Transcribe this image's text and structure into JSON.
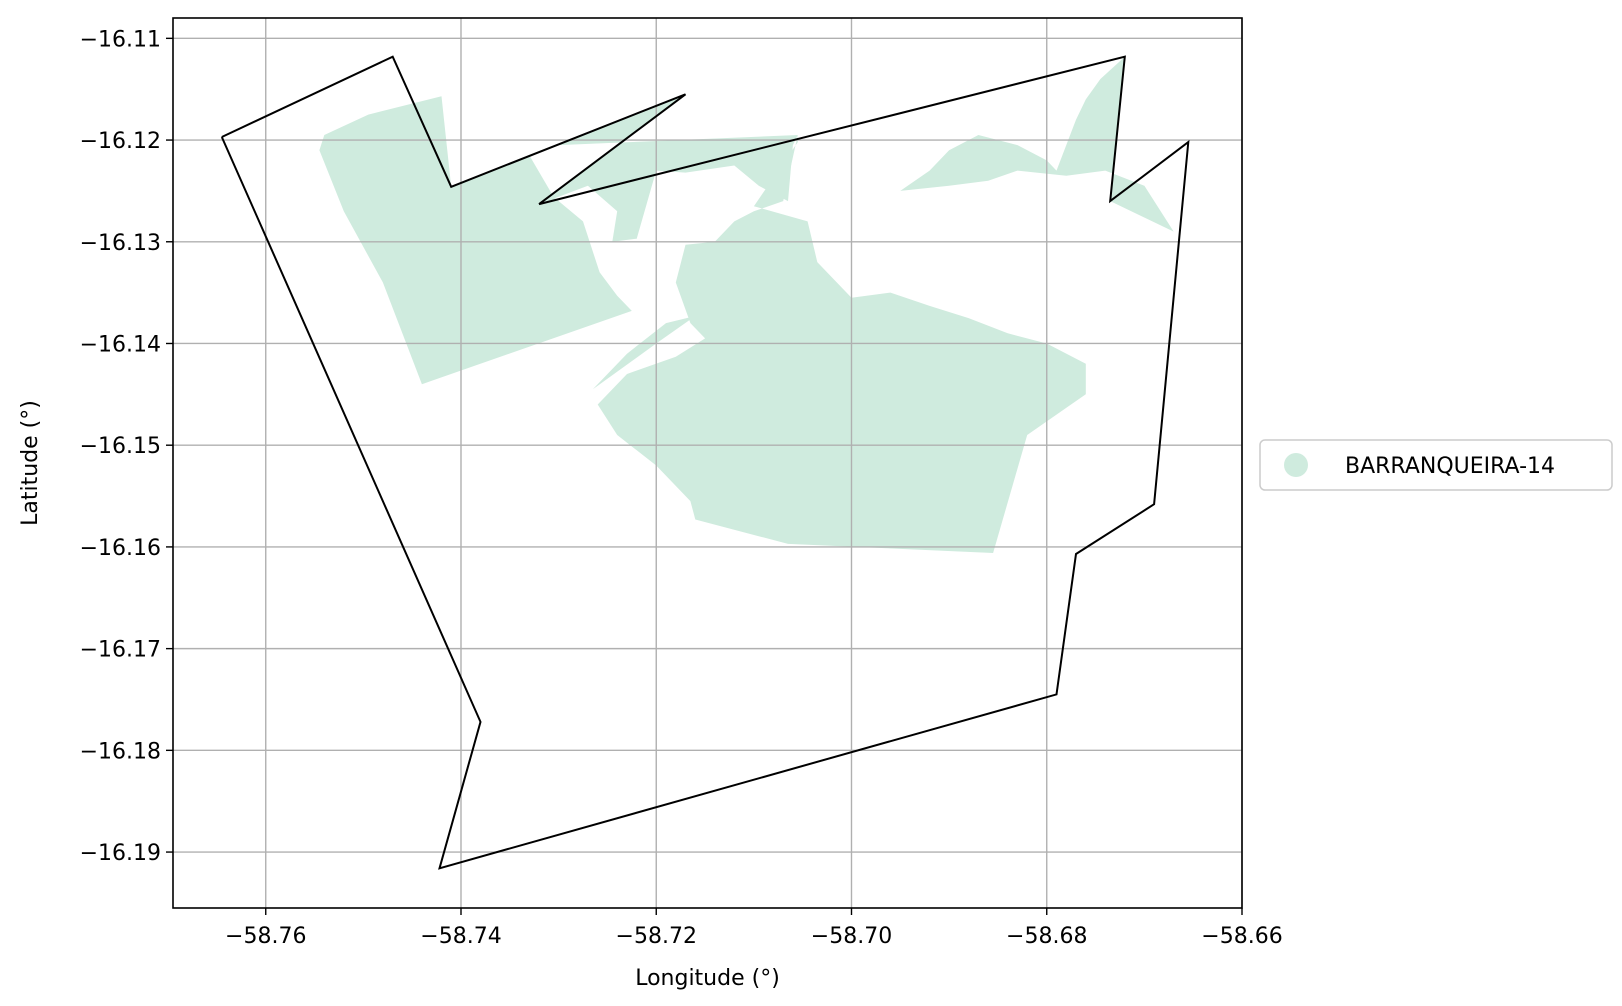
{
  "chart_data": {
    "type": "map",
    "xlabel": "Longitude (°)",
    "ylabel": "Latitude (°)",
    "xlim": [
      -58.7695,
      -58.66
    ],
    "ylim": [
      -16.1955,
      -16.108
    ],
    "xticks": [
      -58.76,
      -58.74,
      -58.72,
      -58.7,
      -58.68,
      -58.66
    ],
    "xtick_labels": [
      "−58.76",
      "−58.74",
      "−58.72",
      "−58.70",
      "−58.68",
      "−58.66"
    ],
    "yticks": [
      -16.11,
      -16.12,
      -16.13,
      -16.14,
      -16.15,
      -16.16,
      -16.17,
      -16.18,
      -16.19
    ],
    "ytick_labels": [
      "−16.11",
      "−16.12",
      "−16.13",
      "−16.14",
      "−16.15",
      "−16.16",
      "−16.17",
      "−16.18",
      "−16.19"
    ],
    "grid": true,
    "legend": {
      "position": "center-right",
      "entries": [
        {
          "label": "BARRANQUEIRA-14",
          "color": "#cfebde"
        }
      ]
    },
    "boundary": {
      "color": "#000000",
      "coords": [
        [
          -58.7645,
          -16.1197
        ],
        [
          -58.747,
          -16.1118
        ],
        [
          -58.741,
          -16.1246
        ],
        [
          -58.717,
          -16.1155
        ],
        [
          -58.732,
          -16.1263
        ],
        [
          -58.672,
          -16.1118
        ],
        [
          -58.6735,
          -16.126
        ],
        [
          -58.6655,
          -16.1202
        ],
        [
          -58.669,
          -16.1558
        ],
        [
          -58.677,
          -16.1607
        ],
        [
          -58.679,
          -16.1745
        ],
        [
          -58.7422,
          -16.1916
        ],
        [
          -58.738,
          -16.1772
        ],
        [
          -58.7645,
          -16.1197
        ]
      ]
    },
    "areas": [
      {
        "name": "BARRANQUEIRA-14",
        "color": "#cfebde",
        "polygons": [
          [
            [
              -58.754,
              -16.1195
            ],
            [
              -58.7495,
              -16.1175
            ],
            [
              -58.742,
              -16.1157
            ],
            [
              -58.741,
              -16.1246
            ],
            [
              -58.733,
              -16.1215
            ],
            [
              -58.7305,
              -16.1256
            ],
            [
              -58.7275,
              -16.128
            ],
            [
              -58.7258,
              -16.133
            ],
            [
              -58.724,
              -16.1353
            ],
            [
              -58.7225,
              -16.1368
            ],
            [
              -58.744,
              -16.144
            ],
            [
              -58.748,
              -16.134
            ],
            [
              -58.752,
              -16.127
            ],
            [
              -58.7545,
              -16.121
            ]
          ],
          [
            [
              -58.73,
              -16.1205
            ],
            [
              -58.717,
              -16.1155
            ],
            [
              -58.732,
              -16.1263
            ],
            [
              -58.727,
              -16.1245
            ],
            [
              -58.724,
              -16.127
            ],
            [
              -58.7245,
              -16.13
            ],
            [
              -58.722,
              -16.1297
            ],
            [
              -58.72,
              -16.123
            ],
            [
              -58.717,
              -16.1232
            ],
            [
              -58.712,
              -16.1225
            ],
            [
              -58.7095,
              -16.1245
            ],
            [
              -58.7065,
              -16.126
            ],
            [
              -58.706,
              -16.1205
            ],
            [
              -58.7055,
              -16.1195
            ],
            [
              -58.73,
              -16.1205
            ]
          ],
          [
            [
              -58.7055,
              -16.1195
            ],
            [
              -58.7055,
              -16.1202
            ],
            [
              -58.71,
              -16.1265
            ],
            [
              -58.7045,
              -16.128
            ],
            [
              -58.7035,
              -16.132
            ],
            [
              -58.7,
              -16.1355
            ],
            [
              -58.696,
              -16.135
            ],
            [
              -58.692,
              -16.1363
            ],
            [
              -58.688,
              -16.1375
            ],
            [
              -58.684,
              -16.139
            ],
            [
              -58.68,
              -16.14
            ],
            [
              -58.676,
              -16.142
            ],
            [
              -58.676,
              -16.145
            ],
            [
              -58.682,
              -16.149
            ],
            [
              -58.6855,
              -16.1606
            ],
            [
              -58.7065,
              -16.1597
            ],
            [
              -58.716,
              -16.1573
            ],
            [
              -58.7165,
              -16.1555
            ],
            [
              -58.72,
              -16.152
            ],
            [
              -58.724,
              -16.149
            ],
            [
              -58.726,
              -16.146
            ],
            [
              -58.723,
              -16.143
            ],
            [
              -58.718,
              -16.1413
            ],
            [
              -58.715,
              -16.1395
            ],
            [
              -58.7165,
              -16.138
            ],
            [
              -58.718,
              -16.134
            ],
            [
              -58.717,
              -16.1303
            ],
            [
              -58.714,
              -16.13
            ],
            [
              -58.712,
              -16.128
            ],
            [
              -58.71,
              -16.127
            ],
            [
              -58.707,
              -16.126
            ]
          ],
          [
            [
              -58.7265,
              -16.1445
            ],
            [
              -58.72,
              -16.14
            ],
            [
              -58.716,
              -16.1373
            ],
            [
              -58.719,
              -16.138
            ],
            [
              -58.723,
              -16.141
            ],
            [
              -58.7265,
              -16.1445
            ]
          ],
          [
            [
              -58.695,
              -16.125
            ],
            [
              -58.692,
              -16.123
            ],
            [
              -58.69,
              -16.121
            ],
            [
              -58.687,
              -16.1195
            ],
            [
              -58.683,
              -16.1205
            ],
            [
              -58.68,
              -16.122
            ],
            [
              -58.679,
              -16.123
            ],
            [
              -58.677,
              -16.118
            ],
            [
              -58.676,
              -16.116
            ],
            [
              -58.6745,
              -16.114
            ],
            [
              -58.672,
              -16.1118
            ],
            [
              -58.6735,
              -16.126
            ],
            [
              -58.667,
              -16.129
            ],
            [
              -58.67,
              -16.1245
            ],
            [
              -58.674,
              -16.123
            ],
            [
              -58.678,
              -16.1235
            ],
            [
              -58.683,
              -16.123
            ],
            [
              -58.686,
              -16.124
            ],
            [
              -58.69,
              -16.1245
            ],
            [
              -58.695,
              -16.125
            ]
          ]
        ]
      }
    ]
  }
}
